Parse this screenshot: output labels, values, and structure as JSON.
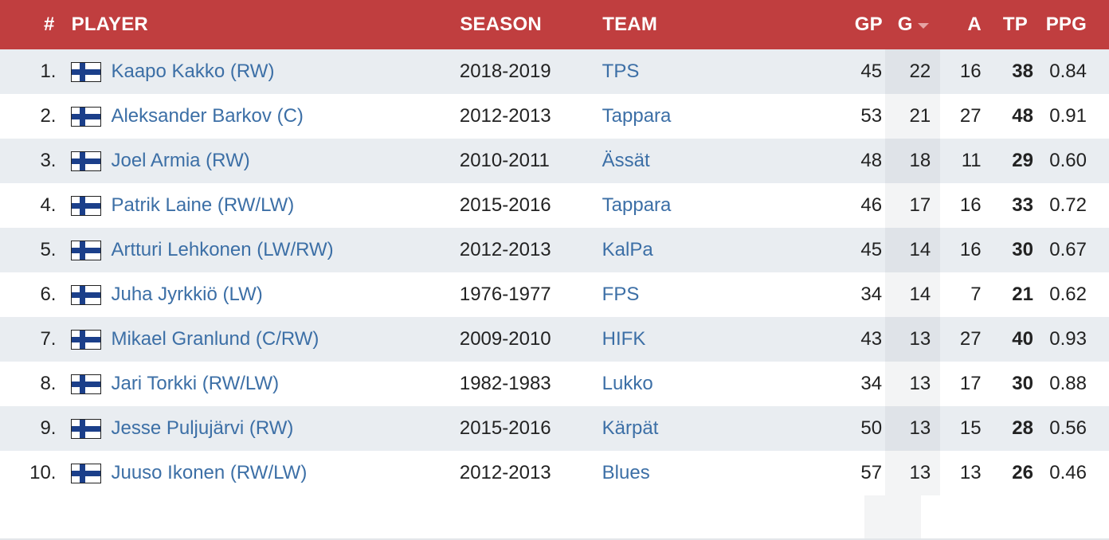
{
  "table": {
    "headers": {
      "rank": "#",
      "player": "PLAYER",
      "season": "SEASON",
      "team": "TEAM",
      "gp": "GP",
      "g": "G",
      "a": "A",
      "tp": "TP",
      "ppg": "PPG"
    },
    "sorted_column": "G",
    "sort_direction": "descending",
    "flag_icon": "finland-flag-icon",
    "colors": {
      "header_bg": "#c03e3f",
      "link": "#3c6fa6",
      "row_alt": "#e9edf1"
    },
    "rows": [
      {
        "rank": "1.",
        "player": "Kaapo Kakko (RW)",
        "season": "2018-2019",
        "team": "TPS",
        "gp": "45",
        "g": "22",
        "a": "16",
        "tp": "38",
        "ppg": "0.84"
      },
      {
        "rank": "2.",
        "player": "Aleksander Barkov (C)",
        "season": "2012-2013",
        "team": "Tappara",
        "gp": "53",
        "g": "21",
        "a": "27",
        "tp": "48",
        "ppg": "0.91"
      },
      {
        "rank": "3.",
        "player": "Joel Armia (RW)",
        "season": "2010-2011",
        "team": "Ässät",
        "gp": "48",
        "g": "18",
        "a": "11",
        "tp": "29",
        "ppg": "0.60"
      },
      {
        "rank": "4.",
        "player": "Patrik Laine (RW/LW)",
        "season": "2015-2016",
        "team": "Tappara",
        "gp": "46",
        "g": "17",
        "a": "16",
        "tp": "33",
        "ppg": "0.72"
      },
      {
        "rank": "5.",
        "player": "Artturi Lehkonen (LW/RW)",
        "season": "2012-2013",
        "team": "KalPa",
        "gp": "45",
        "g": "14",
        "a": "16",
        "tp": "30",
        "ppg": "0.67"
      },
      {
        "rank": "6.",
        "player": "Juha Jyrkkiö (LW)",
        "season": "1976-1977",
        "team": "FPS",
        "gp": "34",
        "g": "14",
        "a": "7",
        "tp": "21",
        "ppg": "0.62"
      },
      {
        "rank": "7.",
        "player": "Mikael Granlund (C/RW)",
        "season": "2009-2010",
        "team": "HIFK",
        "gp": "43",
        "g": "13",
        "a": "27",
        "tp": "40",
        "ppg": "0.93"
      },
      {
        "rank": "8.",
        "player": "Jari Torkki (RW/LW)",
        "season": "1982-1983",
        "team": "Lukko",
        "gp": "34",
        "g": "13",
        "a": "17",
        "tp": "30",
        "ppg": "0.88"
      },
      {
        "rank": "9.",
        "player": "Jesse Puljujärvi (RW)",
        "season": "2015-2016",
        "team": "Kärpät",
        "gp": "50",
        "g": "13",
        "a": "15",
        "tp": "28",
        "ppg": "0.56"
      },
      {
        "rank": "10.",
        "player": "Juuso Ikonen (RW/LW)",
        "season": "2012-2013",
        "team": "Blues",
        "gp": "57",
        "g": "13",
        "a": "13",
        "tp": "26",
        "ppg": "0.46"
      }
    ]
  }
}
